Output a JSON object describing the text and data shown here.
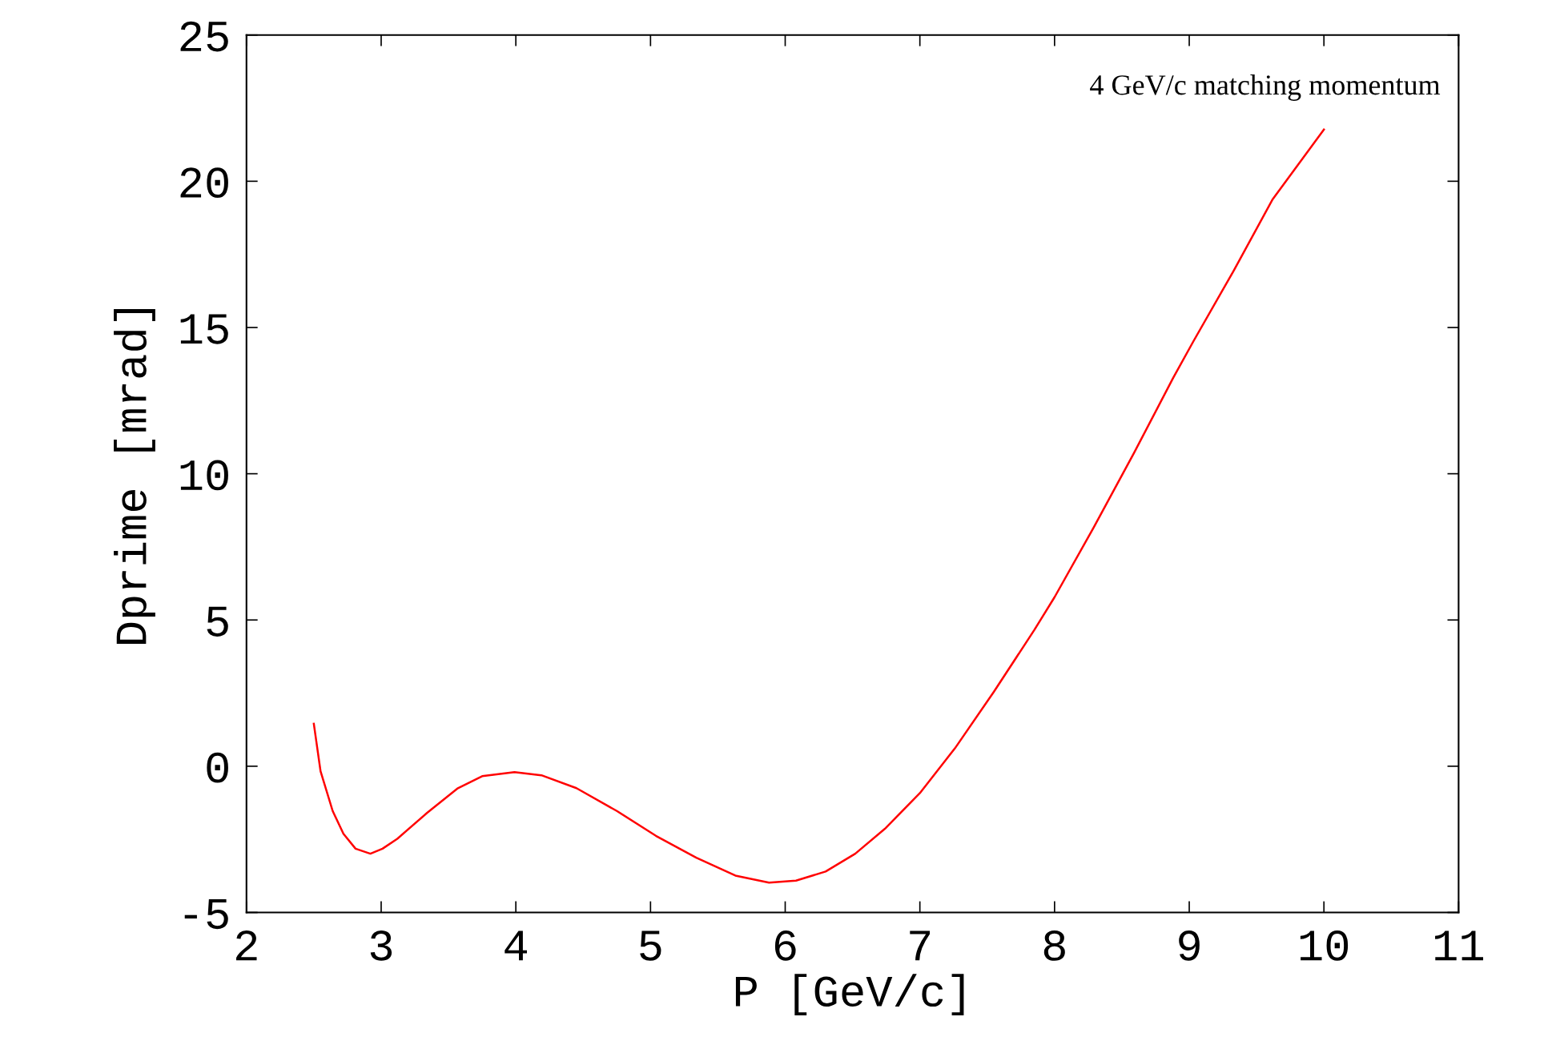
{
  "chart_data": {
    "type": "line",
    "xlabel": "P [GeV/c]",
    "ylabel": "Dprime [mrad]",
    "annotations": [
      "4 GeV/c matching momentum"
    ],
    "xlim": [
      2,
      11
    ],
    "ylim": [
      -5,
      25
    ],
    "xticks": [
      2,
      3,
      4,
      5,
      6,
      7,
      8,
      9,
      10,
      11
    ],
    "yticks": [
      -5,
      0,
      5,
      10,
      15,
      20,
      25
    ],
    "grid": false,
    "legend": false,
    "marker": "none",
    "line_style": "solid",
    "series": [
      {
        "color": "#ff0000",
        "x": [
          2.5,
          2.55,
          2.64,
          2.72,
          2.81,
          2.92,
          3.01,
          3.12,
          3.34,
          3.57,
          3.75,
          3.99,
          4.19,
          4.45,
          4.75,
          5.04,
          5.34,
          5.63,
          5.88,
          6.08,
          6.3,
          6.52,
          6.74,
          7.0,
          7.26,
          7.55,
          7.85,
          8.0,
          8.29,
          8.59,
          8.88,
          9.03,
          9.33,
          9.62,
          10.0
        ],
        "values": [
          1.45,
          -0.17,
          -1.53,
          -2.31,
          -2.82,
          -2.99,
          -2.82,
          -2.48,
          -1.6,
          -0.75,
          -0.34,
          -0.2,
          -0.31,
          -0.75,
          -1.53,
          -2.38,
          -3.13,
          -3.74,
          -3.98,
          -3.91,
          -3.6,
          -2.99,
          -2.14,
          -0.92,
          0.61,
          2.55,
          4.66,
          5.78,
          8.16,
          10.71,
          13.27,
          14.52,
          16.94,
          19.39,
          21.77
        ]
      }
    ]
  }
}
